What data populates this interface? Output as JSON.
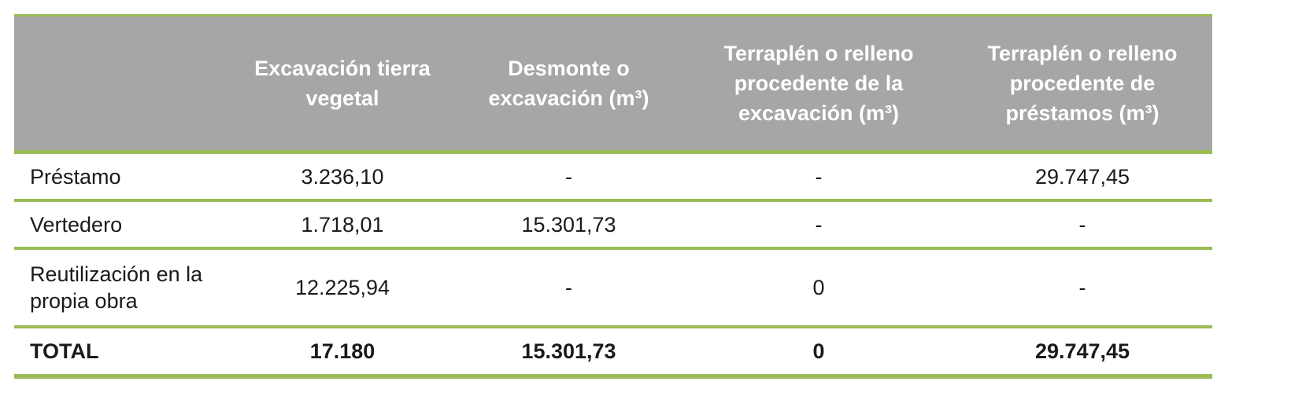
{
  "table": {
    "header": [
      "Excavación tierra vegetal",
      "Desmonte o excavación (m³)",
      "Terraplén o relleno procedente de la excavación (m³)",
      "Terraplén o relleno procedente de préstamos (m³)"
    ],
    "rows": [
      {
        "label": "Préstamo",
        "cells": [
          "3.236,10",
          "-",
          "-",
          "29.747,45"
        ]
      },
      {
        "label": "Vertedero",
        "cells": [
          "1.718,01",
          "15.301,73",
          "-",
          "-"
        ]
      },
      {
        "label": "Reutilización en la propia obra",
        "cells": [
          "12.225,94",
          "-",
          "0",
          "-"
        ]
      }
    ],
    "total": {
      "label": "TOTAL",
      "cells": [
        "17.180",
        "15.301,73",
        "0",
        "29.747,45"
      ]
    }
  }
}
